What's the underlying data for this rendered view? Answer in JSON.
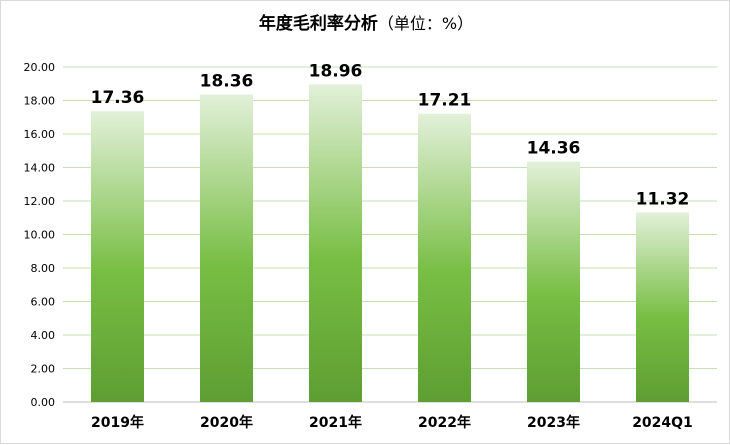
{
  "chart_data": {
    "type": "bar",
    "title": "年度毛利率分析",
    "subtitle": "（单位：%）",
    "xlabel": "",
    "ylabel": "",
    "categories": [
      "2019年",
      "2020年",
      "2021年",
      "2022年",
      "2023年",
      "2024Q1"
    ],
    "values": [
      17.36,
      18.36,
      18.96,
      17.21,
      14.36,
      11.32
    ],
    "data_labels": [
      "17.36",
      "18.36",
      "18.96",
      "17.21",
      "14.36",
      "11.32"
    ],
    "ylim": [
      0,
      20
    ],
    "yticks": [
      "0.00",
      "2.00",
      "4.00",
      "6.00",
      "8.00",
      "10.00",
      "12.00",
      "14.00",
      "16.00",
      "18.00",
      "20.00"
    ],
    "ytick_values": [
      0,
      2,
      4,
      6,
      8,
      10,
      12,
      14,
      16,
      18,
      20
    ],
    "grid": true,
    "legend": "none",
    "colors": {
      "bar_top": "#e2f0d9",
      "bar_mid": "#78be44",
      "bar_bottom": "#5e9e32",
      "grid": "#c5e0b4",
      "axis": "#bfbfbf"
    }
  }
}
